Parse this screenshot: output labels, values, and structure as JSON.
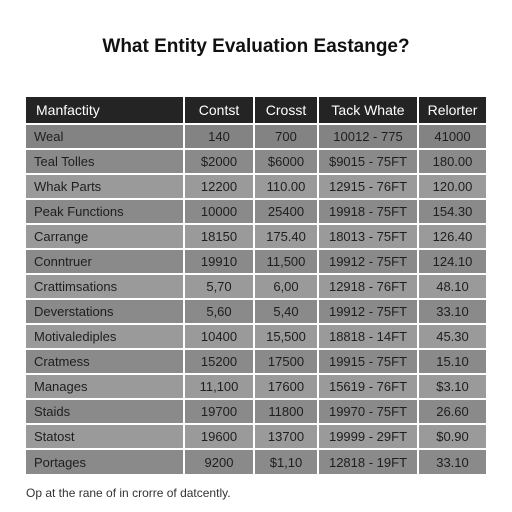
{
  "title": "What Entity Evaluation Eastange?",
  "table": {
    "headers": [
      "Manfactity",
      "Contst",
      "Crosst",
      "Tack Whate",
      "Relorter"
    ],
    "rows": [
      [
        "Weal",
        "140",
        "700",
        "10012 - 775",
        "41000"
      ],
      [
        "Teal Tolles",
        "$2000",
        "$6000",
        "$9015 - 75FT",
        "180.00"
      ],
      [
        "Whak Parts",
        "12200",
        "110.00",
        "12915 - 76FT",
        "120.00"
      ],
      [
        "Peak Functions",
        "10000",
        "25400",
        "19918 - 75FT",
        "154.30"
      ],
      [
        "Carrange",
        "18150",
        "175.40",
        "18013 - 75FT",
        "126.40"
      ],
      [
        "Conntruer",
        "19910",
        "11,500",
        "19912 - 75FT",
        "124.10"
      ],
      [
        "Crattimsations",
        "5,70",
        "6,00",
        "12918 - 76FT",
        "48.10"
      ],
      [
        "Deverstations",
        "5,60",
        "5,40",
        "19912 - 75FT",
        "33.10"
      ],
      [
        "Motivalediples",
        "10400",
        "15,500",
        "18818 - 14FT",
        "45.30"
      ],
      [
        "Cratmess",
        "15200",
        "17500",
        "19915 - 75FT",
        "15.10"
      ],
      [
        "Manages",
        "11,100",
        "17600",
        "15619 - 76FT",
        "$3.10"
      ],
      [
        "Staids",
        "19700",
        "11800",
        "19970 - 75FT",
        "26.60"
      ],
      [
        "Statost",
        "19600",
        "13700",
        "19999 - 29FT",
        "$0.90"
      ],
      [
        "Portages",
        "9200",
        "$1,10",
        "12818 - 19FT",
        "33.10"
      ]
    ]
  },
  "footnote": "Op at the rane of in crorre of datcently."
}
